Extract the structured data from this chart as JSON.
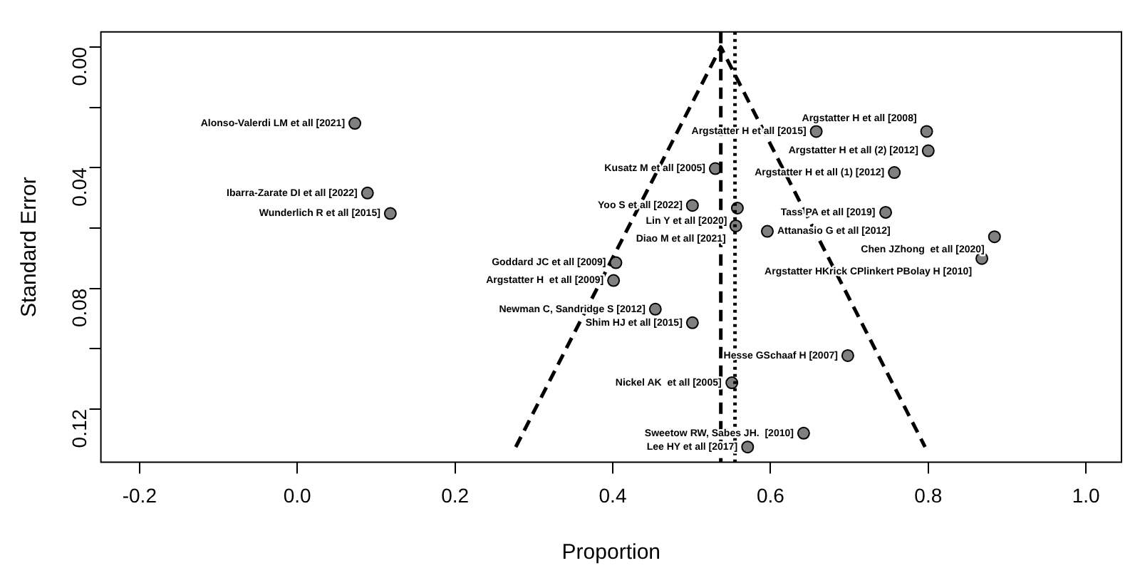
{
  "chart_data": {
    "type": "scatter",
    "xlabel": "Proportion",
    "ylabel": "Standard Error",
    "xlim": [
      -0.249,
      1.045
    ],
    "ylim": [
      0.1376,
      -0.005
    ],
    "xticks": [
      -0.2,
      {
        "value": 0,
        "label": "0.0"
      },
      0.2,
      0.4,
      0.6,
      0.8,
      {
        "value": 1,
        "label": "1.0"
      }
    ],
    "yticks": [
      {
        "value": 0,
        "label": "0.00"
      },
      {
        "value": 0.02,
        "label": null
      },
      0.04,
      {
        "value": 0.06,
        "label": null
      },
      0.08,
      {
        "value": 0.1,
        "label": null
      },
      0.12
    ],
    "grid": false,
    "legend": false,
    "marker": "circle",
    "series": [
      {
        "type": "scatter",
        "color": "#808080",
        "x": [
          0.073,
          0.089,
          0.118,
          0.53,
          0.501,
          0.558,
          0.556,
          0.596,
          0.658,
          0.798,
          0.8,
          0.757,
          0.746,
          0.884,
          0.868,
          0.404,
          0.401,
          0.454,
          0.501,
          0.698,
          0.551,
          0.642,
          0.571
        ],
        "values": [
          0.0253,
          0.0484,
          0.0552,
          0.0403,
          0.0525,
          0.0534,
          0.0593,
          0.0611,
          0.028,
          0.028,
          0.0344,
          0.0416,
          0.0548,
          0.0629,
          0.0701,
          0.0715,
          0.0774,
          0.0869,
          0.0914,
          0.1023,
          0.1113,
          0.128,
          0.1326
        ]
      },
      {
        "type": "line",
        "color": "#000000",
        "line_style": "dashed",
        "marker": "none",
        "x": [
          0.277,
          0.537,
          0.796
        ],
        "values": [
          0.1326,
          0,
          0.1326
        ]
      }
    ],
    "ref_lines": [
      {
        "axis": "x",
        "value": 0.537,
        "color": "#000000",
        "line_style": "dashed"
      },
      {
        "axis": "x",
        "value": 0.555,
        "color": "#000000",
        "line_style": "dotted"
      }
    ],
    "annotations": [
      {
        "text": "Alonso-Valerdi LM et all [2021]",
        "x": 0.073,
        "y": 0.0253
      },
      {
        "text": "Ibarra-Zarate DI et all [2022]",
        "x": 0.089,
        "y": 0.0484
      },
      {
        "text": "Wunderlich R et all [2015]",
        "x": 0.118,
        "y": 0.0552
      },
      {
        "text": "Kusatz M et all [2005]",
        "x": 0.53,
        "y": 0.0403
      },
      {
        "text": "Yoo S et all [2022]",
        "x": 0.501,
        "y": 0.0525
      },
      {
        "text": "Lin Y et all [2020]",
        "x": 0.558,
        "y": 0.0534
      },
      {
        "text": "Diao M et all [2021]",
        "x": 0.556,
        "y": 0.0593
      },
      {
        "text": "Attanasio G et all [2012]",
        "x": 0.596,
        "y": 0.0611
      },
      {
        "text": "Argstatter H et all [2015]",
        "x": 0.658,
        "y": 0.028
      },
      {
        "text": "Argstatter H et all [2008]",
        "x": 0.798,
        "y": 0.028
      },
      {
        "text": "Argstatter H et all (2) [2012]",
        "x": 0.8,
        "y": 0.0344
      },
      {
        "text": "Argstatter H et all (1) [2012]",
        "x": 0.757,
        "y": 0.0416
      },
      {
        "text": "Tass PA et all [2019]",
        "x": 0.746,
        "y": 0.0548
      },
      {
        "text": "Chen JZhong  et all [2020]",
        "x": 0.884,
        "y": 0.0629
      },
      {
        "text": "Argstatter HKrick CPlinkert PBolay H [2010]",
        "x": 0.868,
        "y": 0.0701
      },
      {
        "text": "Goddard JC et all [2009]",
        "x": 0.404,
        "y": 0.0715
      },
      {
        "text": "Argstatter H  et all [2009]",
        "x": 0.401,
        "y": 0.0774
      },
      {
        "text": "Newman C, Sandridge S [2012]",
        "x": 0.454,
        "y": 0.0869
      },
      {
        "text": "Shim HJ et all [2015]",
        "x": 0.501,
        "y": 0.0914
      },
      {
        "text": "Hesse GSchaaf H [2007]",
        "x": 0.698,
        "y": 0.1023
      },
      {
        "text": "Nickel AK  et all [2005]",
        "x": 0.551,
        "y": 0.1113
      },
      {
        "text": "Sweetow RW, Sabes JH.  [2010]",
        "x": 0.642,
        "y": 0.128
      },
      {
        "text": "Lee HY et all [2017]",
        "x": 0.571,
        "y": 0.1326
      }
    ]
  }
}
